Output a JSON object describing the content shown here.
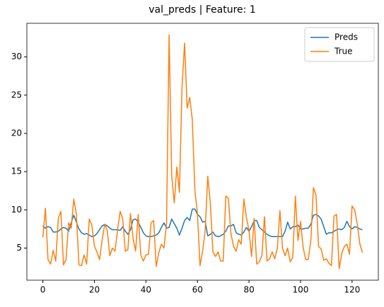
{
  "chart_data": {
    "type": "line",
    "title": "val_preds | Feature: 1",
    "x": [
      0,
      1,
      2,
      3,
      4,
      5,
      6,
      7,
      8,
      9,
      10,
      11,
      12,
      13,
      14,
      15,
      16,
      17,
      18,
      19,
      20,
      21,
      22,
      23,
      24,
      25,
      26,
      27,
      28,
      29,
      30,
      31,
      32,
      33,
      34,
      35,
      36,
      37,
      38,
      39,
      40,
      41,
      42,
      43,
      44,
      45,
      46,
      47,
      48,
      49,
      50,
      51,
      52,
      53,
      54,
      55,
      56,
      57,
      58,
      59,
      60,
      61,
      62,
      63,
      64,
      65,
      66,
      67,
      68,
      69,
      70,
      71,
      72,
      73,
      74,
      75,
      76,
      77,
      78,
      79,
      80,
      81,
      82,
      83,
      84,
      85,
      86,
      87,
      88,
      89,
      90,
      91,
      92,
      93,
      94,
      95,
      96,
      97,
      98,
      99,
      100,
      101,
      102,
      103,
      104,
      105,
      106,
      107,
      108,
      109,
      110,
      111,
      112,
      113,
      114,
      115,
      116,
      117,
      118,
      119,
      120,
      121,
      122,
      123,
      124
    ],
    "series": [
      {
        "name": "Preds",
        "color": "#1f77b4",
        "values": [
          7.9,
          7.6,
          7.8,
          7.7,
          7.1,
          7.1,
          7.2,
          7.5,
          7.7,
          7.6,
          7.2,
          8.3,
          9.3,
          8.4,
          7.5,
          7.0,
          6.8,
          6.9,
          6.7,
          6.5,
          6.6,
          6.9,
          7.4,
          7.9,
          8.1,
          7.9,
          7.6,
          7.4,
          7.4,
          7.4,
          7.3,
          7.8,
          7.2,
          6.8,
          7.4,
          8.7,
          8.8,
          8.4,
          7.7,
          7.0,
          6.6,
          6.5,
          6.5,
          6.6,
          6.7,
          7.0,
          7.7,
          8.3,
          7.6,
          7.7,
          8.8,
          8.2,
          7.6,
          6.7,
          7.6,
          8.6,
          9.0,
          8.6,
          10.1,
          10.1,
          9.4,
          9.1,
          8.4,
          8.5,
          6.6,
          6.8,
          7.1,
          6.6,
          6.5,
          6.6,
          6.8,
          7.2,
          7.9,
          7.9,
          8.1,
          7.0,
          6.8,
          6.7,
          7.1,
          7.7,
          7.2,
          7.8,
          8.6,
          8.6,
          7.7,
          7.4,
          7.1,
          6.8,
          6.6,
          6.5,
          6.5,
          6.5,
          6.5,
          6.5,
          7.2,
          8.4,
          7.5,
          7.8,
          7.8,
          8.0,
          7.5,
          7.5,
          7.6,
          7.6,
          8.1,
          9.3,
          9.4,
          9.2,
          8.8,
          7.8,
          6.8,
          7.0,
          7.0,
          7.2,
          7.4,
          7.5,
          7.4,
          7.7,
          8.5,
          7.8,
          7.5,
          7.8,
          7.7,
          7.5,
          7.4
        ]
      },
      {
        "name": "True",
        "color": "#ff7f0e",
        "values": [
          6.4,
          10.2,
          3.5,
          2.9,
          4.7,
          3.3,
          8.9,
          9.8,
          2.8,
          3.5,
          8.3,
          7.6,
          11.4,
          9.5,
          2.8,
          2.7,
          4.1,
          2.9,
          8.8,
          8.0,
          5.3,
          4.5,
          3.5,
          6.0,
          8.1,
          7.3,
          4.0,
          5.0,
          4.6,
          7.4,
          9.8,
          8.8,
          4.6,
          4.8,
          9.5,
          6.3,
          4.6,
          9.4,
          4.1,
          3.3,
          4.1,
          4.2,
          8.3,
          8.6,
          2.6,
          4.4,
          5.5,
          5.0,
          8.2,
          32.9,
          14.5,
          10.9,
          15.6,
          12.3,
          26.0,
          31.8,
          23.3,
          24.7,
          21.8,
          12.6,
          9.5,
          2.7,
          4.6,
          7.3,
          14.4,
          10.9,
          4.5,
          3.9,
          4.5,
          3.3,
          3.3,
          11.8,
          11.5,
          6.9,
          5.2,
          4.6,
          6.1,
          5.5,
          11.4,
          9.0,
          7.3,
          3.9,
          8.9,
          2.9,
          3.2,
          4.0,
          9.1,
          3.3,
          3.6,
          4.5,
          3.6,
          5.0,
          9.9,
          5.0,
          4.0,
          5.0,
          3.2,
          3.8,
          11.8,
          6.0,
          8.5,
          5.1,
          3.5,
          3.5,
          6.0,
          12.9,
          11.9,
          5.2,
          4.9,
          3.4,
          3.6,
          3.0,
          2.7,
          9.2,
          9.4,
          2.3,
          4.3,
          5.2,
          5.5,
          4.2,
          10.5,
          10.0,
          8.2,
          5.6,
          4.4
        ]
      }
    ],
    "xlim": [
      -6.2,
      130.2
    ],
    "ylim": [
      0.8,
      34.4
    ],
    "xticks": [
      0,
      20,
      40,
      60,
      80,
      100,
      120
    ],
    "yticks": [
      5,
      10,
      15,
      20,
      25,
      30
    ],
    "legend": "upper right"
  }
}
